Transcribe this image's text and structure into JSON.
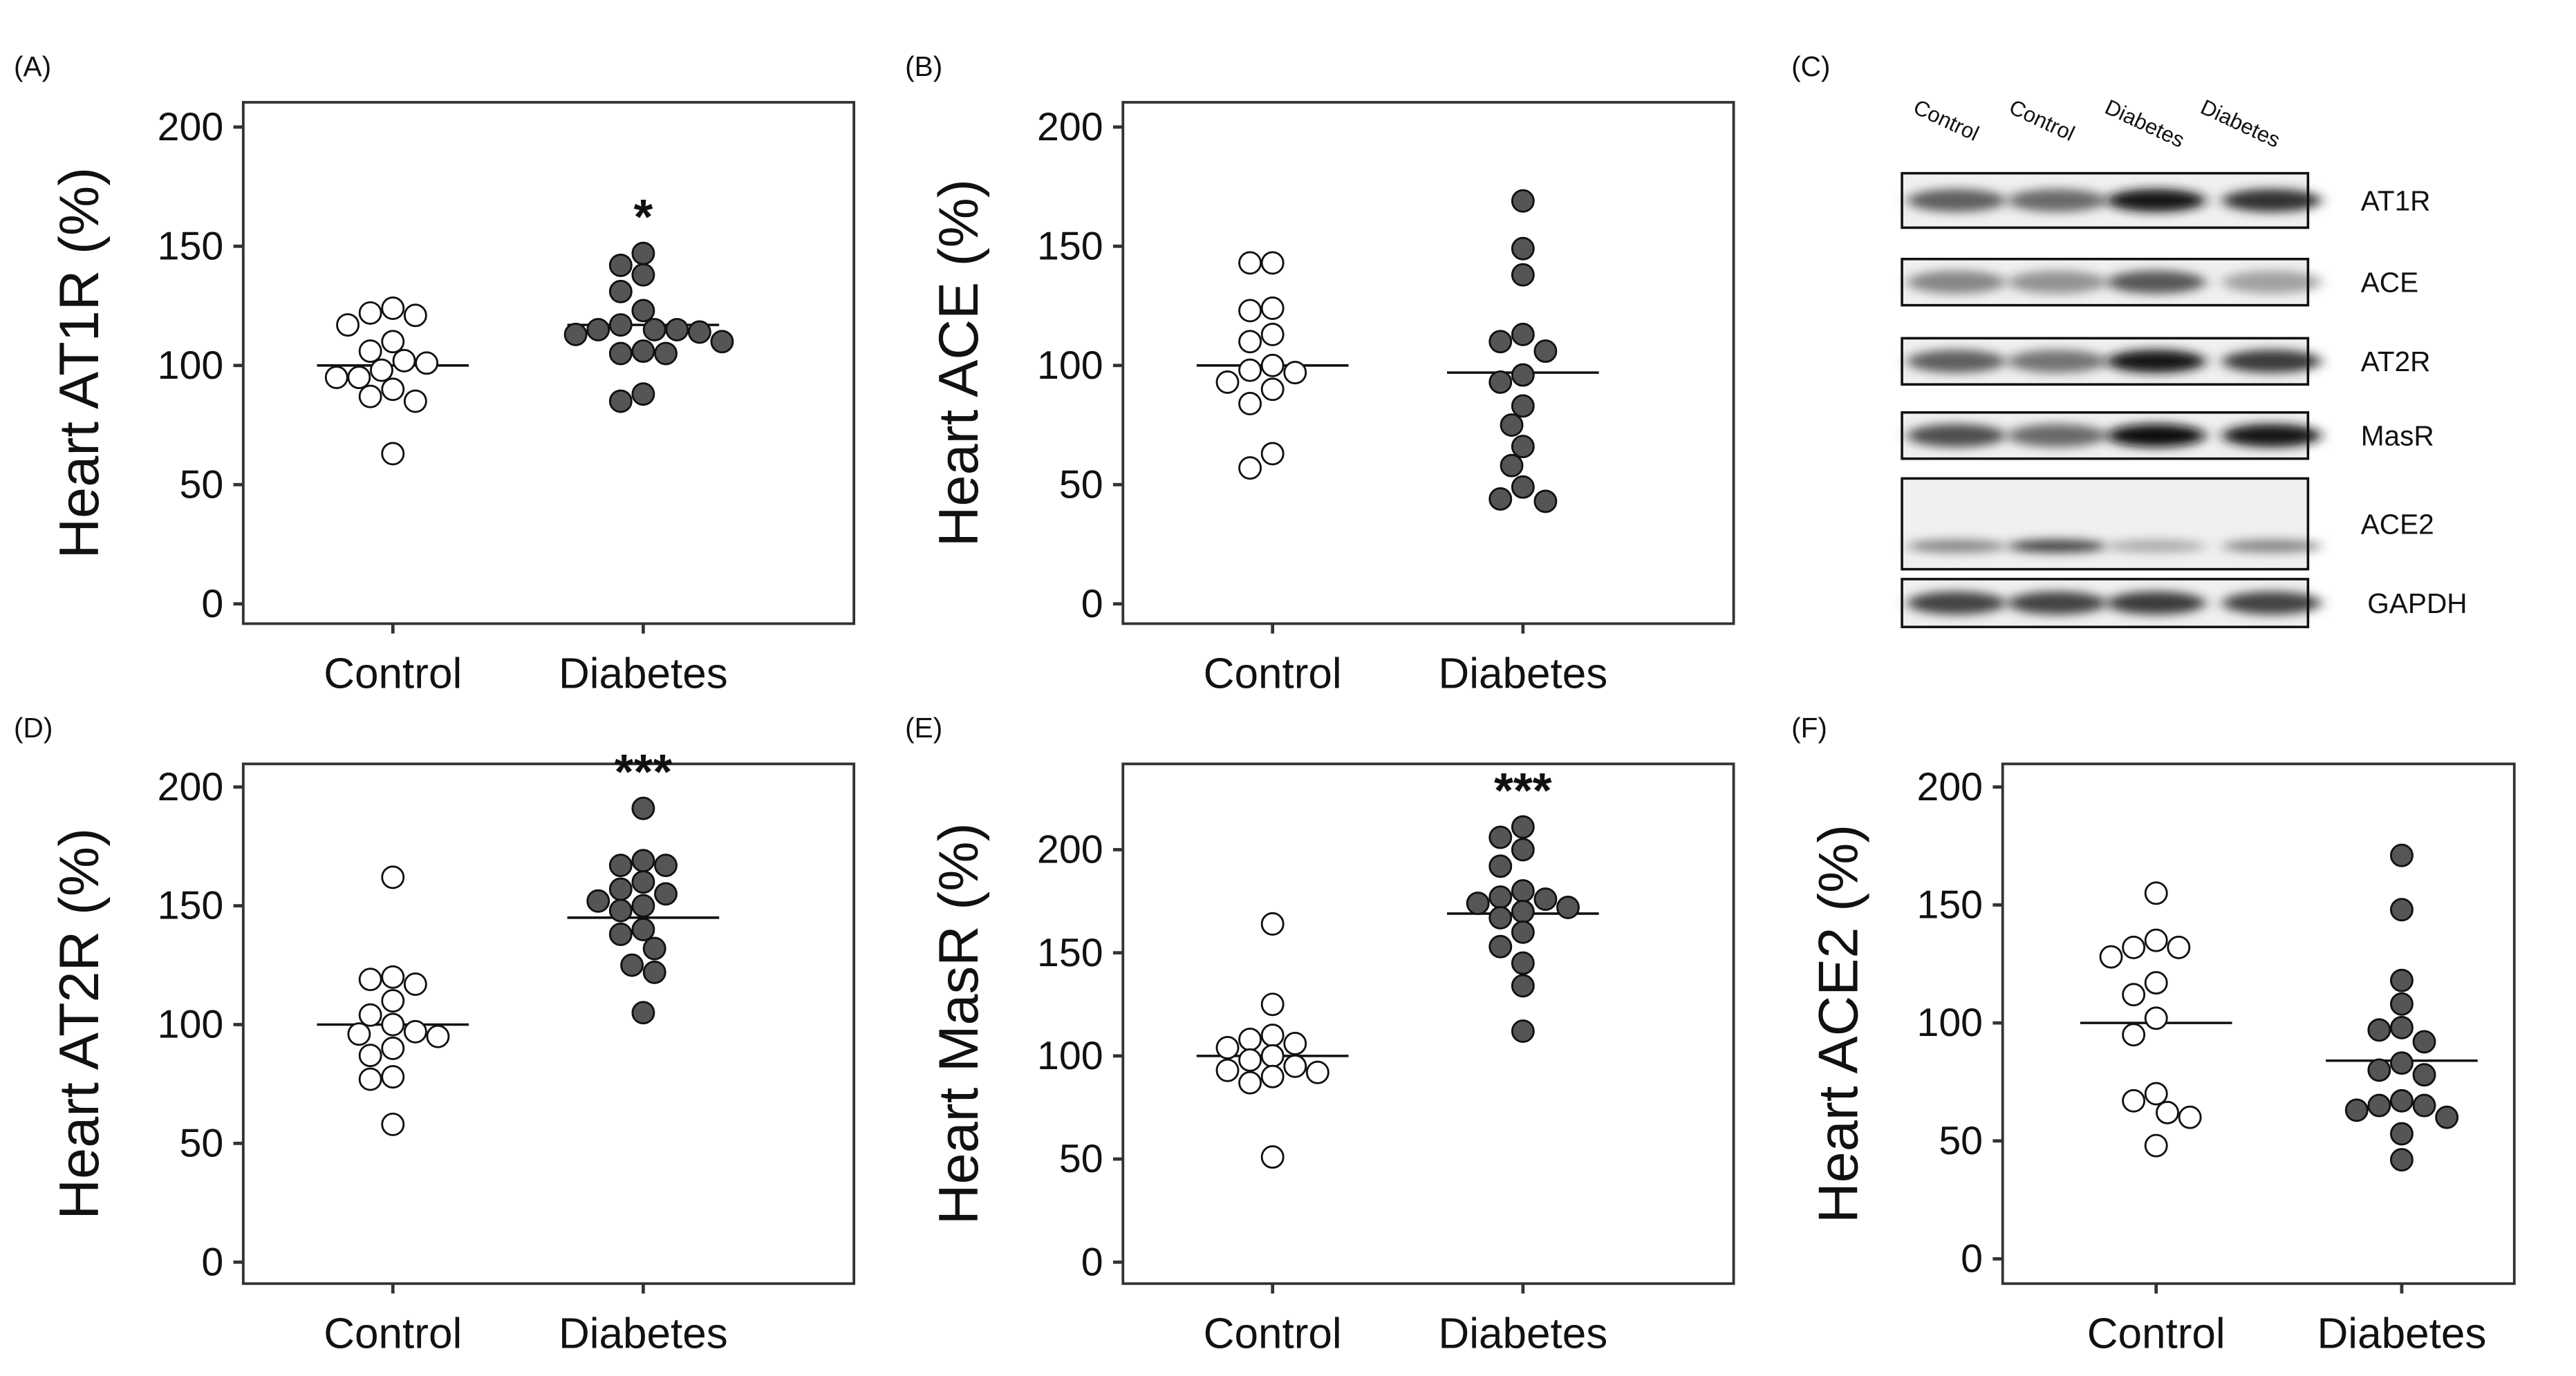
{
  "chart_data": [
    {
      "type": "scatter",
      "panel_label": "(A)",
      "ylabel": "Heart AT1R (%)",
      "ylim": [
        0,
        200
      ],
      "yticks": [
        0,
        50,
        100,
        150,
        200
      ],
      "categories": [
        "Control",
        "Diabetes"
      ],
      "series": [
        {
          "name": "Control",
          "fill": "#ffffff",
          "values": [
            124,
            121,
            122,
            117,
            110,
            106,
            102,
            101,
            95,
            95,
            90,
            87,
            85,
            98,
            63
          ],
          "mean": 100
        },
        {
          "name": "Diabetes",
          "fill": "#555555",
          "values": [
            147,
            142,
            138,
            131,
            123,
            117,
            115,
            115,
            115,
            114,
            113,
            110,
            106,
            105,
            105,
            88,
            85
          ],
          "mean": 117
        }
      ],
      "significance": "*"
    },
    {
      "type": "scatter",
      "panel_label": "(B)",
      "ylabel": "Heart ACE (%)",
      "ylim": [
        0,
        200
      ],
      "yticks": [
        0,
        50,
        100,
        150,
        200
      ],
      "categories": [
        "Control",
        "Diabetes"
      ],
      "series": [
        {
          "name": "Control",
          "fill": "#ffffff",
          "values": [
            143,
            143,
            124,
            123,
            113,
            110,
            100,
            98,
            97,
            93,
            90,
            84,
            63,
            57
          ],
          "mean": 100
        },
        {
          "name": "Diabetes",
          "fill": "#555555",
          "values": [
            169,
            149,
            138,
            113,
            110,
            106,
            96,
            93,
            83,
            75,
            66,
            58,
            49,
            44,
            43
          ],
          "mean": 97
        }
      ],
      "significance": ""
    },
    {
      "type": "scatter",
      "panel_label": "(D)",
      "ylabel": "Heart AT2R (%)",
      "ylim": [
        0,
        200
      ],
      "yticks": [
        0,
        50,
        100,
        150,
        200
      ],
      "categories": [
        "Control",
        "Diabetes"
      ],
      "series": [
        {
          "name": "Control",
          "fill": "#ffffff",
          "values": [
            162,
            120,
            119,
            117,
            110,
            104,
            100,
            97,
            96,
            95,
            90,
            87,
            78,
            77,
            58
          ],
          "mean": 100
        },
        {
          "name": "Diabetes",
          "fill": "#555555",
          "values": [
            191,
            169,
            167,
            167,
            160,
            157,
            155,
            152,
            150,
            148,
            140,
            138,
            132,
            125,
            122,
            105
          ],
          "mean": 145
        }
      ],
      "significance": "***"
    },
    {
      "type": "scatter",
      "panel_label": "(E)",
      "ylabel": "Heart MasR (%)",
      "ylim": [
        0,
        240
      ],
      "yticks": [
        0,
        50,
        100,
        150,
        200
      ],
      "categories": [
        "Control",
        "Diabetes"
      ],
      "series": [
        {
          "name": "Control",
          "fill": "#ffffff",
          "values": [
            164,
            125,
            110,
            108,
            106,
            104,
            100,
            98,
            95,
            93,
            92,
            90,
            87,
            51
          ],
          "mean": 100
        },
        {
          "name": "Diabetes",
          "fill": "#555555",
          "values": [
            211,
            206,
            200,
            192,
            180,
            177,
            176,
            174,
            172,
            170,
            167,
            160,
            153,
            145,
            134,
            112
          ],
          "mean": 169
        }
      ],
      "significance": "***"
    },
    {
      "type": "scatter",
      "panel_label": "(F)",
      "ylabel": "Heart ACE2 (%)",
      "ylim": [
        0,
        200
      ],
      "yticks": [
        0,
        50,
        100,
        150,
        200
      ],
      "categories": [
        "Control",
        "Diabetes"
      ],
      "series": [
        {
          "name": "Control",
          "fill": "#ffffff",
          "values": [
            155,
            135,
            132,
            132,
            128,
            117,
            112,
            102,
            95,
            70,
            67,
            62,
            60,
            48
          ],
          "mean": 100
        },
        {
          "name": "Diabetes",
          "fill": "#555555",
          "values": [
            171,
            148,
            118,
            108,
            98,
            97,
            92,
            83,
            80,
            78,
            67,
            65,
            65,
            63,
            60,
            53,
            42
          ],
          "mean": 84
        }
      ],
      "significance": ""
    }
  ],
  "blot": {
    "panel_label": "(C)",
    "lanes": [
      "Control",
      "Control",
      "Diabetes",
      "Diabetes"
    ],
    "bands": [
      {
        "name": "AT1R",
        "intensity": [
          0.55,
          0.5,
          0.95,
          0.8
        ]
      },
      {
        "name": "ACE",
        "intensity": [
          0.35,
          0.28,
          0.6,
          0.2
        ]
      },
      {
        "name": "AT2R",
        "intensity": [
          0.55,
          0.45,
          0.95,
          0.75
        ]
      },
      {
        "name": "MasR",
        "intensity": [
          0.65,
          0.5,
          1.0,
          0.95
        ]
      },
      {
        "name": "ACE2",
        "intensity": [
          0.35,
          0.7,
          0.15,
          0.35
        ]
      },
      {
        "name": "GAPDH",
        "intensity": [
          0.7,
          0.7,
          0.75,
          0.7
        ]
      }
    ]
  }
}
